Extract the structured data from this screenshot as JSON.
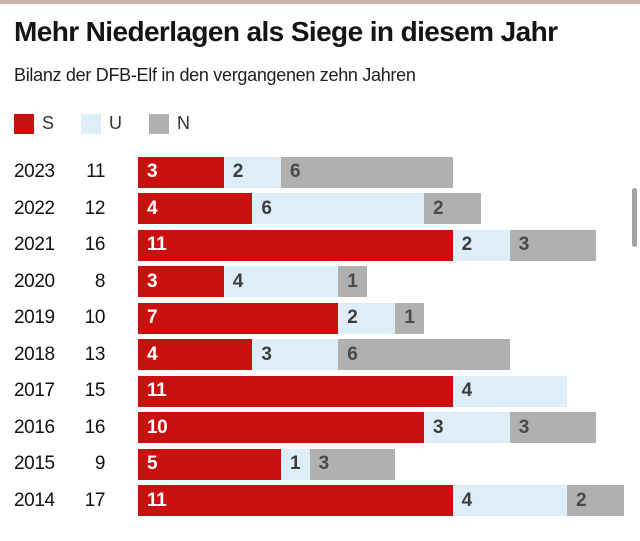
{
  "header": {
    "title": "Mehr Niederlagen als Siege in diesem Jahr",
    "subtitle": "Bilanz der DFB-Elf in den vergangenen zehn Jahren"
  },
  "legend": {
    "items": [
      {
        "label": "S",
        "color": "#c9100f"
      },
      {
        "label": "U",
        "color": "#ddeef8"
      },
      {
        "label": "N",
        "color": "#b0b0b0"
      }
    ]
  },
  "chart_data": {
    "type": "bar",
    "orientation": "horizontal",
    "stacked": true,
    "title": "Mehr Niederlagen als Siege in diesem Jahr",
    "subtitle": "Bilanz der DFB-Elf in den vergangenen zehn Jahren",
    "categories": [
      "2023",
      "2022",
      "2021",
      "2020",
      "2019",
      "2018",
      "2017",
      "2016",
      "2015",
      "2014"
    ],
    "totals": [
      11,
      12,
      16,
      8,
      10,
      13,
      15,
      16,
      9,
      17
    ],
    "series": [
      {
        "name": "S",
        "color": "#c9100f",
        "label_color": "#ffffff",
        "values": [
          3,
          4,
          11,
          3,
          7,
          4,
          11,
          10,
          5,
          11
        ]
      },
      {
        "name": "U",
        "color": "#ddeef8",
        "label_color": "#3d3d3d",
        "values": [
          2,
          6,
          2,
          4,
          2,
          3,
          4,
          3,
          1,
          4
        ]
      },
      {
        "name": "N",
        "color": "#b0b0b0",
        "label_color": "#4a4a4a",
        "values": [
          6,
          2,
          3,
          1,
          1,
          6,
          0,
          3,
          3,
          2
        ]
      }
    ],
    "x_range": [
      0,
      17
    ],
    "grid": false,
    "legend_position": "top"
  }
}
